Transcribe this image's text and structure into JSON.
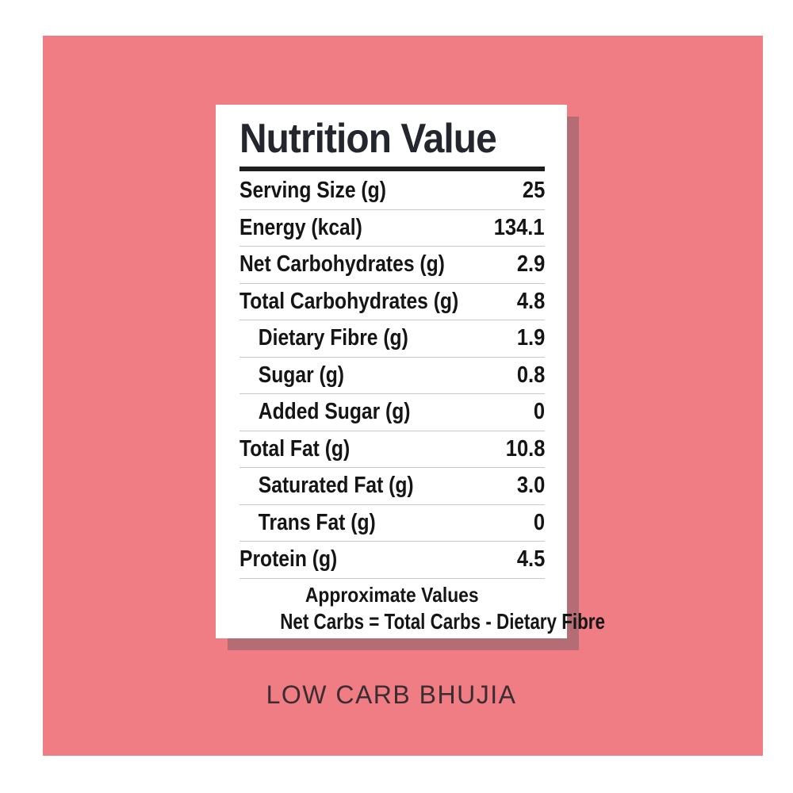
{
  "card": {
    "title": "Nutrition Value",
    "table": {
      "rows": [
        {
          "label": "Serving Size (g)",
          "value": "25"
        },
        {
          "label": "Energy (kcal)",
          "value": "134.1"
        },
        {
          "label": "Net Carbohydrates (g)",
          "value": "2.9"
        },
        {
          "label": "Total Carbohydrates (g)",
          "value": "4.8"
        },
        {
          "label": "Dietary Fibre (g)",
          "value": "1.9"
        },
        {
          "label": "Sugar (g)",
          "value": "0.8"
        },
        {
          "label": "Added Sugar (g)",
          "value": "0"
        },
        {
          "label": "Total Fat (g)",
          "value": "10.8"
        },
        {
          "label": "Saturated Fat (g)",
          "value": "3.0"
        },
        {
          "label": "Trans Fat (g)",
          "value": "0"
        },
        {
          "label": "Protein (g)",
          "value": "4.5"
        }
      ]
    },
    "footer": {
      "line1": "Approximate Values",
      "line2": "Net Carbs = Total Carbs - Dietary Fibre"
    }
  },
  "caption": "LOW CARB BHUJIA",
  "colors": {
    "background": "#f07c84",
    "card_shadow": "#b46d74",
    "text_dark": "#24262e",
    "caption_text": "#3a2d31"
  }
}
